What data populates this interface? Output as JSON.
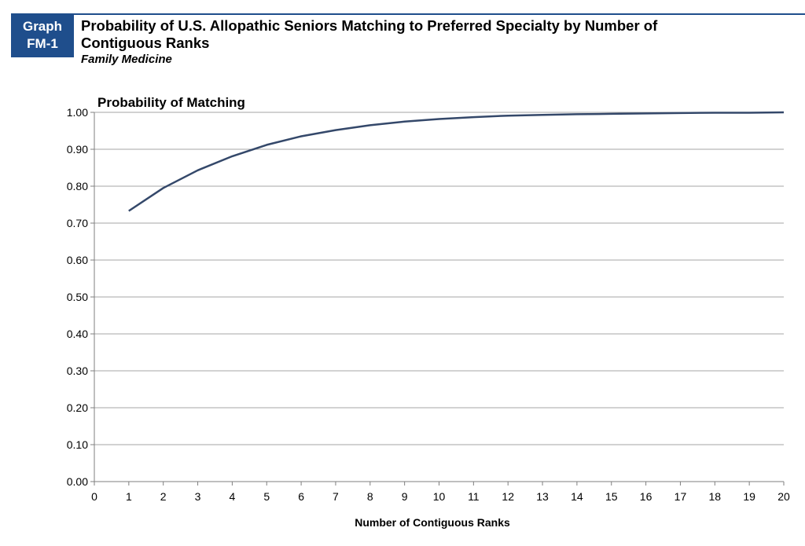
{
  "header": {
    "badge_line1": "Graph",
    "badge_line2": "FM-1",
    "title": "Probability of U.S. Allopathic Seniors Matching to Preferred Specialty by Number of Contiguous Ranks",
    "subtitle": "Family Medicine"
  },
  "colors": {
    "brand": "#1f4e8c",
    "line": "#34486a",
    "grid": "#a6a6a6"
  },
  "chart_data": {
    "type": "line",
    "ylabel": "Probability of Matching",
    "xlabel": "Number of Contiguous Ranks",
    "xlim": [
      0,
      20
    ],
    "ylim": [
      0,
      1
    ],
    "x_ticks": [
      0,
      1,
      2,
      3,
      4,
      5,
      6,
      7,
      8,
      9,
      10,
      11,
      12,
      13,
      14,
      15,
      16,
      17,
      18,
      19,
      20
    ],
    "y_ticks": [
      "0.00",
      "0.10",
      "0.20",
      "0.30",
      "0.40",
      "0.50",
      "0.60",
      "0.70",
      "0.80",
      "0.90",
      "1.00"
    ],
    "grid": true,
    "series": [
      {
        "x": [
          1,
          2,
          3,
          4,
          5,
          6,
          7,
          8,
          9,
          10,
          11,
          12,
          13,
          14,
          15,
          16,
          17,
          18,
          19,
          20
        ],
        "values": [
          0.733,
          0.795,
          0.843,
          0.881,
          0.912,
          0.935,
          0.952,
          0.965,
          0.975,
          0.982,
          0.987,
          0.991,
          0.993,
          0.995,
          0.996,
          0.997,
          0.998,
          0.999,
          0.999,
          1.0
        ]
      }
    ]
  }
}
